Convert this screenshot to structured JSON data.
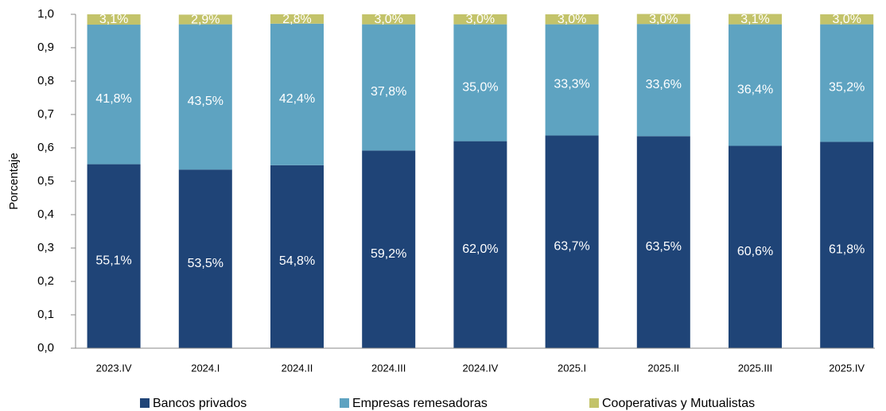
{
  "chart_data": {
    "type": "stacked_bar",
    "y_label": "Porcentaje",
    "categories": [
      "2023.IV",
      "2024.I",
      "2024.II",
      "2024.III",
      "2024.IV",
      "2025.I",
      "2025.II",
      "2025.III",
      "2025.IV"
    ],
    "series": [
      {
        "name": "Bancos privados",
        "color": "#1f4477",
        "values": [
          0.551,
          0.535,
          0.548,
          0.592,
          0.62,
          0.637,
          0.635,
          0.606,
          0.618
        ],
        "value_labels": [
          "55,1%",
          "53,5%",
          "54,8%",
          "59,2%",
          "62,0%",
          "63,7%",
          "63,5%",
          "60,6%",
          "61,8%"
        ]
      },
      {
        "name": "Empresas remesadoras",
        "color": "#5ea3c1",
        "values": [
          0.418,
          0.435,
          0.424,
          0.378,
          0.35,
          0.333,
          0.336,
          0.364,
          0.352
        ],
        "value_labels": [
          "41,8%",
          "43,5%",
          "42,4%",
          "37,8%",
          "35,0%",
          "33,3%",
          "33,6%",
          "36,4%",
          "35,2%"
        ]
      },
      {
        "name": "Cooperativas y Mutualistas",
        "color": "#c3c36a",
        "values": [
          0.031,
          0.029,
          0.028,
          0.03,
          0.03,
          0.03,
          0.03,
          0.031,
          0.03
        ],
        "value_labels": [
          "3,1%",
          "2,9%",
          "2,8%",
          "3,0%",
          "3,0%",
          "3,0%",
          "3,0%",
          "3,1%",
          "3,0%"
        ]
      }
    ],
    "ylim": [
      0,
      1
    ],
    "yticks": [
      {
        "value": 0,
        "label": "0,0"
      },
      {
        "value": 0.1,
        "label": "0,1"
      },
      {
        "value": 0.2,
        "label": "0,2"
      },
      {
        "value": 0.3,
        "label": "0,3"
      },
      {
        "value": 0.4,
        "label": "0,4"
      },
      {
        "value": 0.5,
        "label": "0,5"
      },
      {
        "value": 0.6,
        "label": "0,6"
      },
      {
        "value": 0.7,
        "label": "0,7"
      },
      {
        "value": 0.8,
        "label": "0,8"
      },
      {
        "value": 0.9,
        "label": "0,9"
      },
      {
        "value": 1,
        "label": "1,0"
      }
    ],
    "legend": "bottom"
  }
}
